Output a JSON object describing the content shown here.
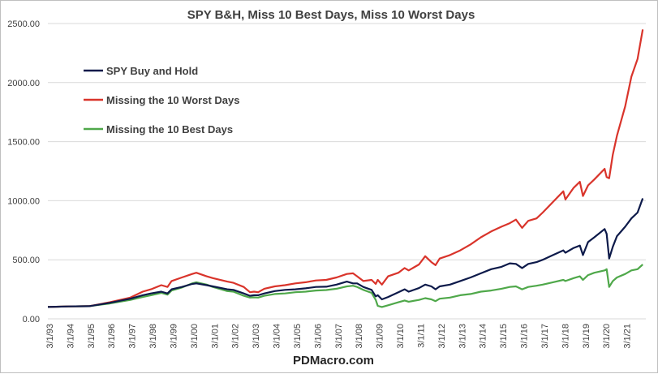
{
  "chart_data": {
    "type": "line",
    "title": "SPY B&H, Miss 10 Best Days, Miss 10 Worst Days",
    "xlabel": "",
    "ylabel": "",
    "ylim": [
      0,
      2500
    ],
    "y_ticks": [
      "0.00",
      "500.00",
      "1000.00",
      "1500.00",
      "2000.00",
      "2500.00"
    ],
    "x_ticks": [
      "3/1/93",
      "3/1/94",
      "3/1/95",
      "3/1/96",
      "3/1/97",
      "3/1/98",
      "3/1/99",
      "3/1/00",
      "3/1/01",
      "3/1/02",
      "3/1/03",
      "3/1/04",
      "3/1/05",
      "3/1/06",
      "3/1/07",
      "3/1/08",
      "3/1/09",
      "3/1/10",
      "3/1/11",
      "3/1/12",
      "3/1/13",
      "3/1/14",
      "3/1/15",
      "3/1/16",
      "3/1/17",
      "3/1/18",
      "3/1/19",
      "3/1/20",
      "3/1/21"
    ],
    "grid": true,
    "legend_position": "top-left",
    "x": [
      1993.0,
      1994.0,
      1995.0,
      1996.0,
      1997.0,
      1997.6,
      1998.0,
      1998.5,
      1998.8,
      1999.0,
      1999.5,
      2000.0,
      2000.2,
      2000.7,
      2001.0,
      2001.7,
      2002.0,
      2002.5,
      2002.8,
      2003.0,
      2003.2,
      2003.5,
      2004.0,
      2004.5,
      2005.0,
      2005.5,
      2006.0,
      2006.5,
      2007.0,
      2007.5,
      2007.8,
      2008.0,
      2008.3,
      2008.7,
      2008.9,
      2009.0,
      2009.2,
      2009.5,
      2010.0,
      2010.3,
      2010.5,
      2011.0,
      2011.3,
      2011.6,
      2011.8,
      2012.0,
      2012.5,
      2013.0,
      2013.5,
      2014.0,
      2014.5,
      2015.0,
      2015.4,
      2015.7,
      2016.0,
      2016.3,
      2016.7,
      2017.0,
      2017.5,
      2018.0,
      2018.1,
      2018.5,
      2018.8,
      2018.95,
      2019.2,
      2019.5,
      2020.0,
      2020.1,
      2020.22,
      2020.4,
      2020.6,
      2021.0,
      2021.3,
      2021.6,
      2021.85
    ],
    "series": [
      {
        "name": "SPY Buy and Hold",
        "color": "#0d1a4a",
        "values": [
          100,
          105,
          107,
          135,
          170,
          200,
          215,
          230,
          215,
          250,
          270,
          295,
          300,
          285,
          275,
          250,
          245,
          215,
          195,
          200,
          200,
          215,
          235,
          245,
          250,
          258,
          270,
          272,
          290,
          315,
          300,
          300,
          270,
          245,
          190,
          200,
          165,
          185,
          225,
          250,
          230,
          260,
          290,
          275,
          250,
          275,
          290,
          320,
          350,
          385,
          420,
          440,
          470,
          465,
          430,
          465,
          480,
          500,
          540,
          580,
          560,
          600,
          620,
          540,
          650,
          690,
          760,
          720,
          510,
          610,
          700,
          780,
          850,
          900,
          1020
        ]
      },
      {
        "name": "Missing the 10 Worst Days",
        "color": "#d9342b",
        "values": [
          100,
          105,
          107,
          140,
          180,
          230,
          250,
          285,
          270,
          320,
          350,
          380,
          390,
          360,
          345,
          315,
          305,
          270,
          225,
          230,
          225,
          255,
          275,
          285,
          300,
          310,
          325,
          330,
          350,
          380,
          385,
          360,
          320,
          330,
          295,
          330,
          290,
          360,
          390,
          430,
          410,
          460,
          530,
          480,
          455,
          510,
          540,
          580,
          630,
          690,
          740,
          780,
          810,
          840,
          770,
          830,
          850,
          900,
          990,
          1080,
          1010,
          1110,
          1160,
          1040,
          1130,
          1180,
          1270,
          1200,
          1190,
          1390,
          1550,
          1800,
          2050,
          2200,
          2450
        ]
      },
      {
        "name": "Missing the 10 Best Days",
        "color": "#4fa84a",
        "values": [
          100,
          105,
          107,
          130,
          160,
          185,
          200,
          220,
          205,
          240,
          265,
          300,
          310,
          290,
          270,
          235,
          230,
          195,
          180,
          182,
          180,
          195,
          210,
          215,
          225,
          230,
          240,
          244,
          255,
          275,
          280,
          270,
          245,
          220,
          160,
          110,
          100,
          115,
          140,
          155,
          145,
          160,
          175,
          165,
          150,
          170,
          180,
          200,
          210,
          230,
          240,
          255,
          270,
          275,
          250,
          270,
          280,
          290,
          310,
          330,
          320,
          345,
          360,
          330,
          370,
          390,
          410,
          420,
          270,
          320,
          350,
          380,
          410,
          420,
          460
        ]
      }
    ]
  },
  "watermark": "PDMacro.com"
}
